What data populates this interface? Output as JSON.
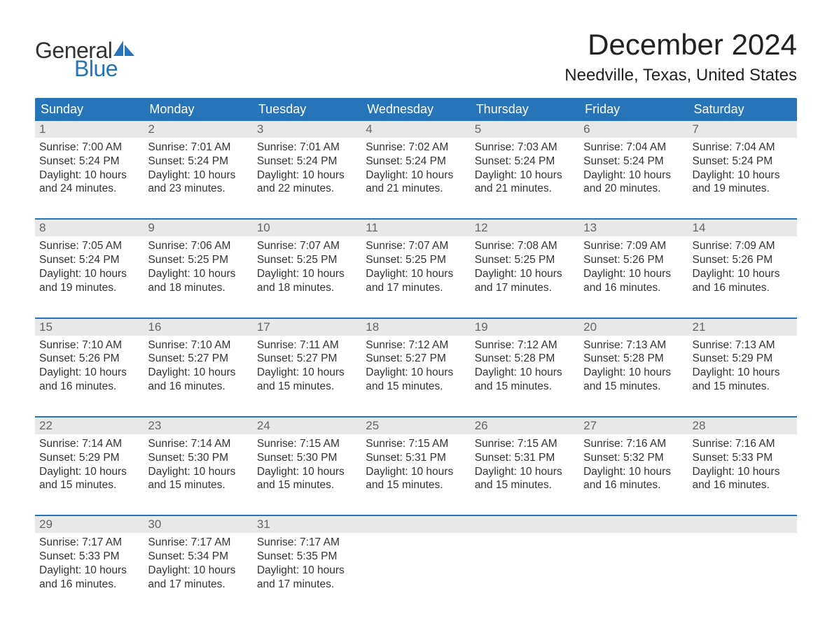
{
  "logo": {
    "text_top": "General",
    "text_bottom": "Blue",
    "color_top": "#333333",
    "color_bottom": "#2874b8",
    "sail_color": "#2874b8"
  },
  "header": {
    "month_title": "December 2024",
    "location": "Needville, Texas, United States"
  },
  "palette": {
    "header_bg": "#2874b8",
    "header_text": "#ffffff",
    "daynum_bg": "#e8e8e8",
    "daynum_text": "#666666",
    "body_text": "#333333",
    "week_divider": "#2874b8",
    "page_bg": "#ffffff"
  },
  "day_headers": [
    "Sunday",
    "Monday",
    "Tuesday",
    "Wednesday",
    "Thursday",
    "Friday",
    "Saturday"
  ],
  "weeks": [
    [
      {
        "n": "1",
        "sunrise": "Sunrise: 7:00 AM",
        "sunset": "Sunset: 5:24 PM",
        "dl1": "Daylight: 10 hours",
        "dl2": "and 24 minutes."
      },
      {
        "n": "2",
        "sunrise": "Sunrise: 7:01 AM",
        "sunset": "Sunset: 5:24 PM",
        "dl1": "Daylight: 10 hours",
        "dl2": "and 23 minutes."
      },
      {
        "n": "3",
        "sunrise": "Sunrise: 7:01 AM",
        "sunset": "Sunset: 5:24 PM",
        "dl1": "Daylight: 10 hours",
        "dl2": "and 22 minutes."
      },
      {
        "n": "4",
        "sunrise": "Sunrise: 7:02 AM",
        "sunset": "Sunset: 5:24 PM",
        "dl1": "Daylight: 10 hours",
        "dl2": "and 21 minutes."
      },
      {
        "n": "5",
        "sunrise": "Sunrise: 7:03 AM",
        "sunset": "Sunset: 5:24 PM",
        "dl1": "Daylight: 10 hours",
        "dl2": "and 21 minutes."
      },
      {
        "n": "6",
        "sunrise": "Sunrise: 7:04 AM",
        "sunset": "Sunset: 5:24 PM",
        "dl1": "Daylight: 10 hours",
        "dl2": "and 20 minutes."
      },
      {
        "n": "7",
        "sunrise": "Sunrise: 7:04 AM",
        "sunset": "Sunset: 5:24 PM",
        "dl1": "Daylight: 10 hours",
        "dl2": "and 19 minutes."
      }
    ],
    [
      {
        "n": "8",
        "sunrise": "Sunrise: 7:05 AM",
        "sunset": "Sunset: 5:24 PM",
        "dl1": "Daylight: 10 hours",
        "dl2": "and 19 minutes."
      },
      {
        "n": "9",
        "sunrise": "Sunrise: 7:06 AM",
        "sunset": "Sunset: 5:25 PM",
        "dl1": "Daylight: 10 hours",
        "dl2": "and 18 minutes."
      },
      {
        "n": "10",
        "sunrise": "Sunrise: 7:07 AM",
        "sunset": "Sunset: 5:25 PM",
        "dl1": "Daylight: 10 hours",
        "dl2": "and 18 minutes."
      },
      {
        "n": "11",
        "sunrise": "Sunrise: 7:07 AM",
        "sunset": "Sunset: 5:25 PM",
        "dl1": "Daylight: 10 hours",
        "dl2": "and 17 minutes."
      },
      {
        "n": "12",
        "sunrise": "Sunrise: 7:08 AM",
        "sunset": "Sunset: 5:25 PM",
        "dl1": "Daylight: 10 hours",
        "dl2": "and 17 minutes."
      },
      {
        "n": "13",
        "sunrise": "Sunrise: 7:09 AM",
        "sunset": "Sunset: 5:26 PM",
        "dl1": "Daylight: 10 hours",
        "dl2": "and 16 minutes."
      },
      {
        "n": "14",
        "sunrise": "Sunrise: 7:09 AM",
        "sunset": "Sunset: 5:26 PM",
        "dl1": "Daylight: 10 hours",
        "dl2": "and 16 minutes."
      }
    ],
    [
      {
        "n": "15",
        "sunrise": "Sunrise: 7:10 AM",
        "sunset": "Sunset: 5:26 PM",
        "dl1": "Daylight: 10 hours",
        "dl2": "and 16 minutes."
      },
      {
        "n": "16",
        "sunrise": "Sunrise: 7:10 AM",
        "sunset": "Sunset: 5:27 PM",
        "dl1": "Daylight: 10 hours",
        "dl2": "and 16 minutes."
      },
      {
        "n": "17",
        "sunrise": "Sunrise: 7:11 AM",
        "sunset": "Sunset: 5:27 PM",
        "dl1": "Daylight: 10 hours",
        "dl2": "and 15 minutes."
      },
      {
        "n": "18",
        "sunrise": "Sunrise: 7:12 AM",
        "sunset": "Sunset: 5:27 PM",
        "dl1": "Daylight: 10 hours",
        "dl2": "and 15 minutes."
      },
      {
        "n": "19",
        "sunrise": "Sunrise: 7:12 AM",
        "sunset": "Sunset: 5:28 PM",
        "dl1": "Daylight: 10 hours",
        "dl2": "and 15 minutes."
      },
      {
        "n": "20",
        "sunrise": "Sunrise: 7:13 AM",
        "sunset": "Sunset: 5:28 PM",
        "dl1": "Daylight: 10 hours",
        "dl2": "and 15 minutes."
      },
      {
        "n": "21",
        "sunrise": "Sunrise: 7:13 AM",
        "sunset": "Sunset: 5:29 PM",
        "dl1": "Daylight: 10 hours",
        "dl2": "and 15 minutes."
      }
    ],
    [
      {
        "n": "22",
        "sunrise": "Sunrise: 7:14 AM",
        "sunset": "Sunset: 5:29 PM",
        "dl1": "Daylight: 10 hours",
        "dl2": "and 15 minutes."
      },
      {
        "n": "23",
        "sunrise": "Sunrise: 7:14 AM",
        "sunset": "Sunset: 5:30 PM",
        "dl1": "Daylight: 10 hours",
        "dl2": "and 15 minutes."
      },
      {
        "n": "24",
        "sunrise": "Sunrise: 7:15 AM",
        "sunset": "Sunset: 5:30 PM",
        "dl1": "Daylight: 10 hours",
        "dl2": "and 15 minutes."
      },
      {
        "n": "25",
        "sunrise": "Sunrise: 7:15 AM",
        "sunset": "Sunset: 5:31 PM",
        "dl1": "Daylight: 10 hours",
        "dl2": "and 15 minutes."
      },
      {
        "n": "26",
        "sunrise": "Sunrise: 7:15 AM",
        "sunset": "Sunset: 5:31 PM",
        "dl1": "Daylight: 10 hours",
        "dl2": "and 15 minutes."
      },
      {
        "n": "27",
        "sunrise": "Sunrise: 7:16 AM",
        "sunset": "Sunset: 5:32 PM",
        "dl1": "Daylight: 10 hours",
        "dl2": "and 16 minutes."
      },
      {
        "n": "28",
        "sunrise": "Sunrise: 7:16 AM",
        "sunset": "Sunset: 5:33 PM",
        "dl1": "Daylight: 10 hours",
        "dl2": "and 16 minutes."
      }
    ],
    [
      {
        "n": "29",
        "sunrise": "Sunrise: 7:17 AM",
        "sunset": "Sunset: 5:33 PM",
        "dl1": "Daylight: 10 hours",
        "dl2": "and 16 minutes."
      },
      {
        "n": "30",
        "sunrise": "Sunrise: 7:17 AM",
        "sunset": "Sunset: 5:34 PM",
        "dl1": "Daylight: 10 hours",
        "dl2": "and 17 minutes."
      },
      {
        "n": "31",
        "sunrise": "Sunrise: 7:17 AM",
        "sunset": "Sunset: 5:35 PM",
        "dl1": "Daylight: 10 hours",
        "dl2": "and 17 minutes."
      },
      {
        "empty": true
      },
      {
        "empty": true
      },
      {
        "empty": true
      },
      {
        "empty": true
      }
    ]
  ]
}
